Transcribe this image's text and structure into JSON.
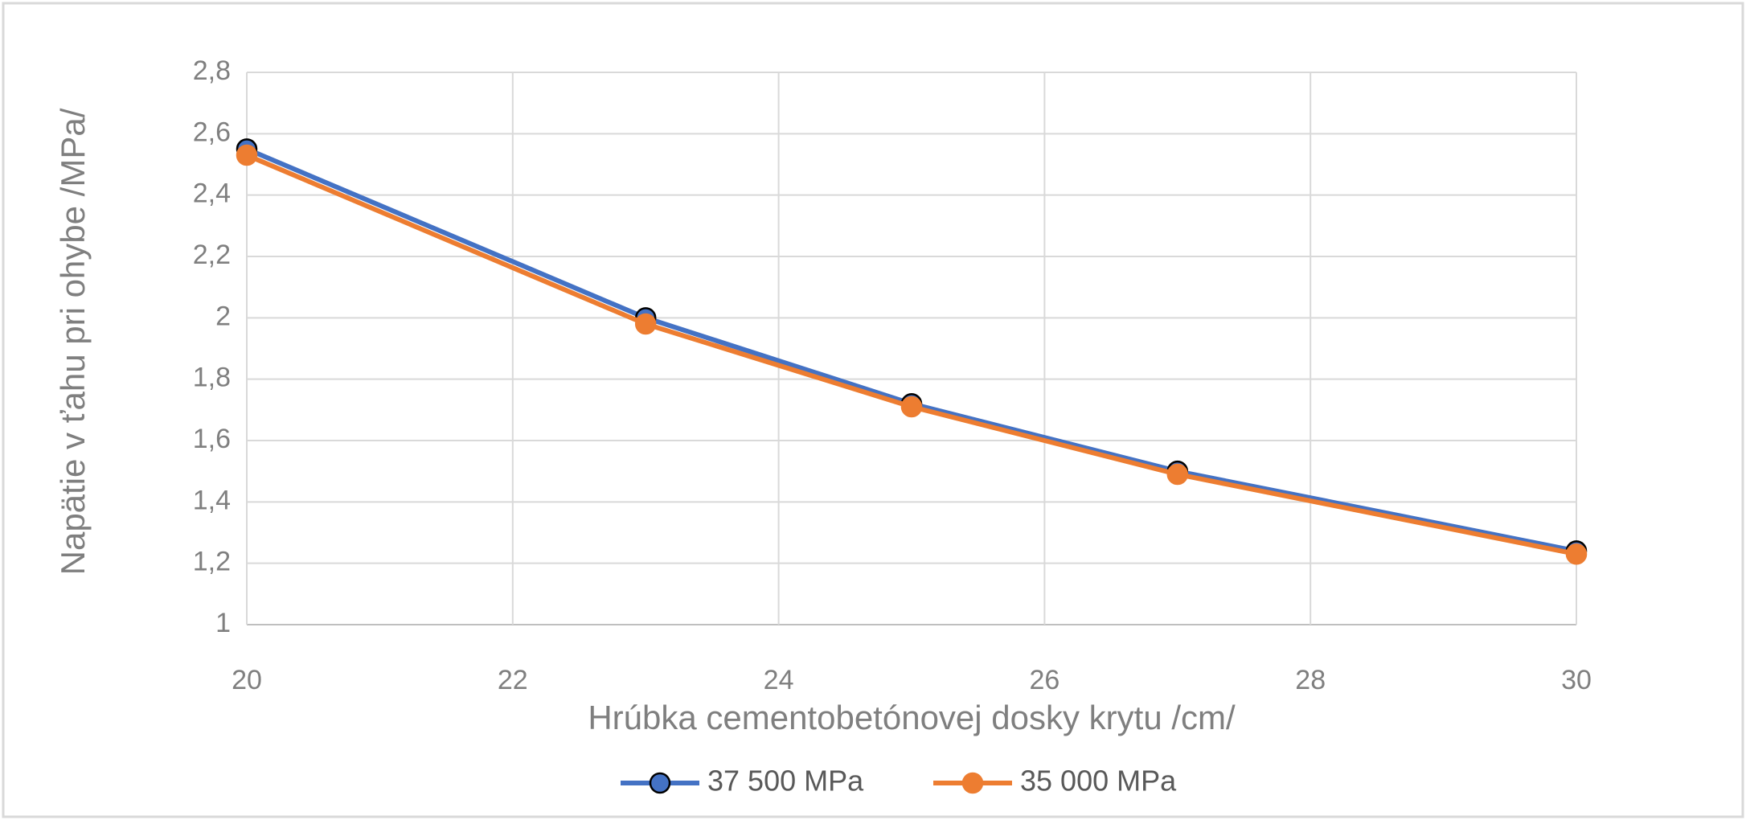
{
  "chart_data": {
    "type": "line",
    "x_label": "Hrúbka cementobetónovej dosky krytu /cm/",
    "y_label": "Napätie v ťahu pri ohybe /MPa/",
    "x": [
      20,
      23,
      25,
      27,
      30
    ],
    "series": [
      {
        "name": "37 500 MPa",
        "color": "#4472c4",
        "marker_edge": "#000000",
        "values": [
          2.55,
          2.0,
          1.72,
          1.5,
          1.24
        ]
      },
      {
        "name": "35 000 MPa",
        "color": "#ed7d31",
        "marker_edge": "#ed7d31",
        "values": [
          2.53,
          1.98,
          1.71,
          1.49,
          1.23
        ]
      }
    ],
    "xlim": [
      20,
      30
    ],
    "xticks": [
      20,
      22,
      24,
      26,
      28,
      30
    ],
    "ylim": [
      1,
      2.8
    ],
    "yticks": [
      1,
      {
        "value": 1.2,
        "label": "1,2"
      },
      {
        "value": 1.4,
        "label": "1,4"
      },
      {
        "value": 1.6,
        "label": "1,6"
      },
      {
        "value": 1.8,
        "label": "1,8"
      },
      2,
      {
        "value": 2.2,
        "label": "2,2"
      },
      {
        "value": 2.4,
        "label": "2,4"
      },
      {
        "value": 2.6,
        "label": "2,6"
      },
      {
        "value": 2.8,
        "label": "2,8"
      }
    ],
    "grid": true,
    "legend": "bottom"
  }
}
